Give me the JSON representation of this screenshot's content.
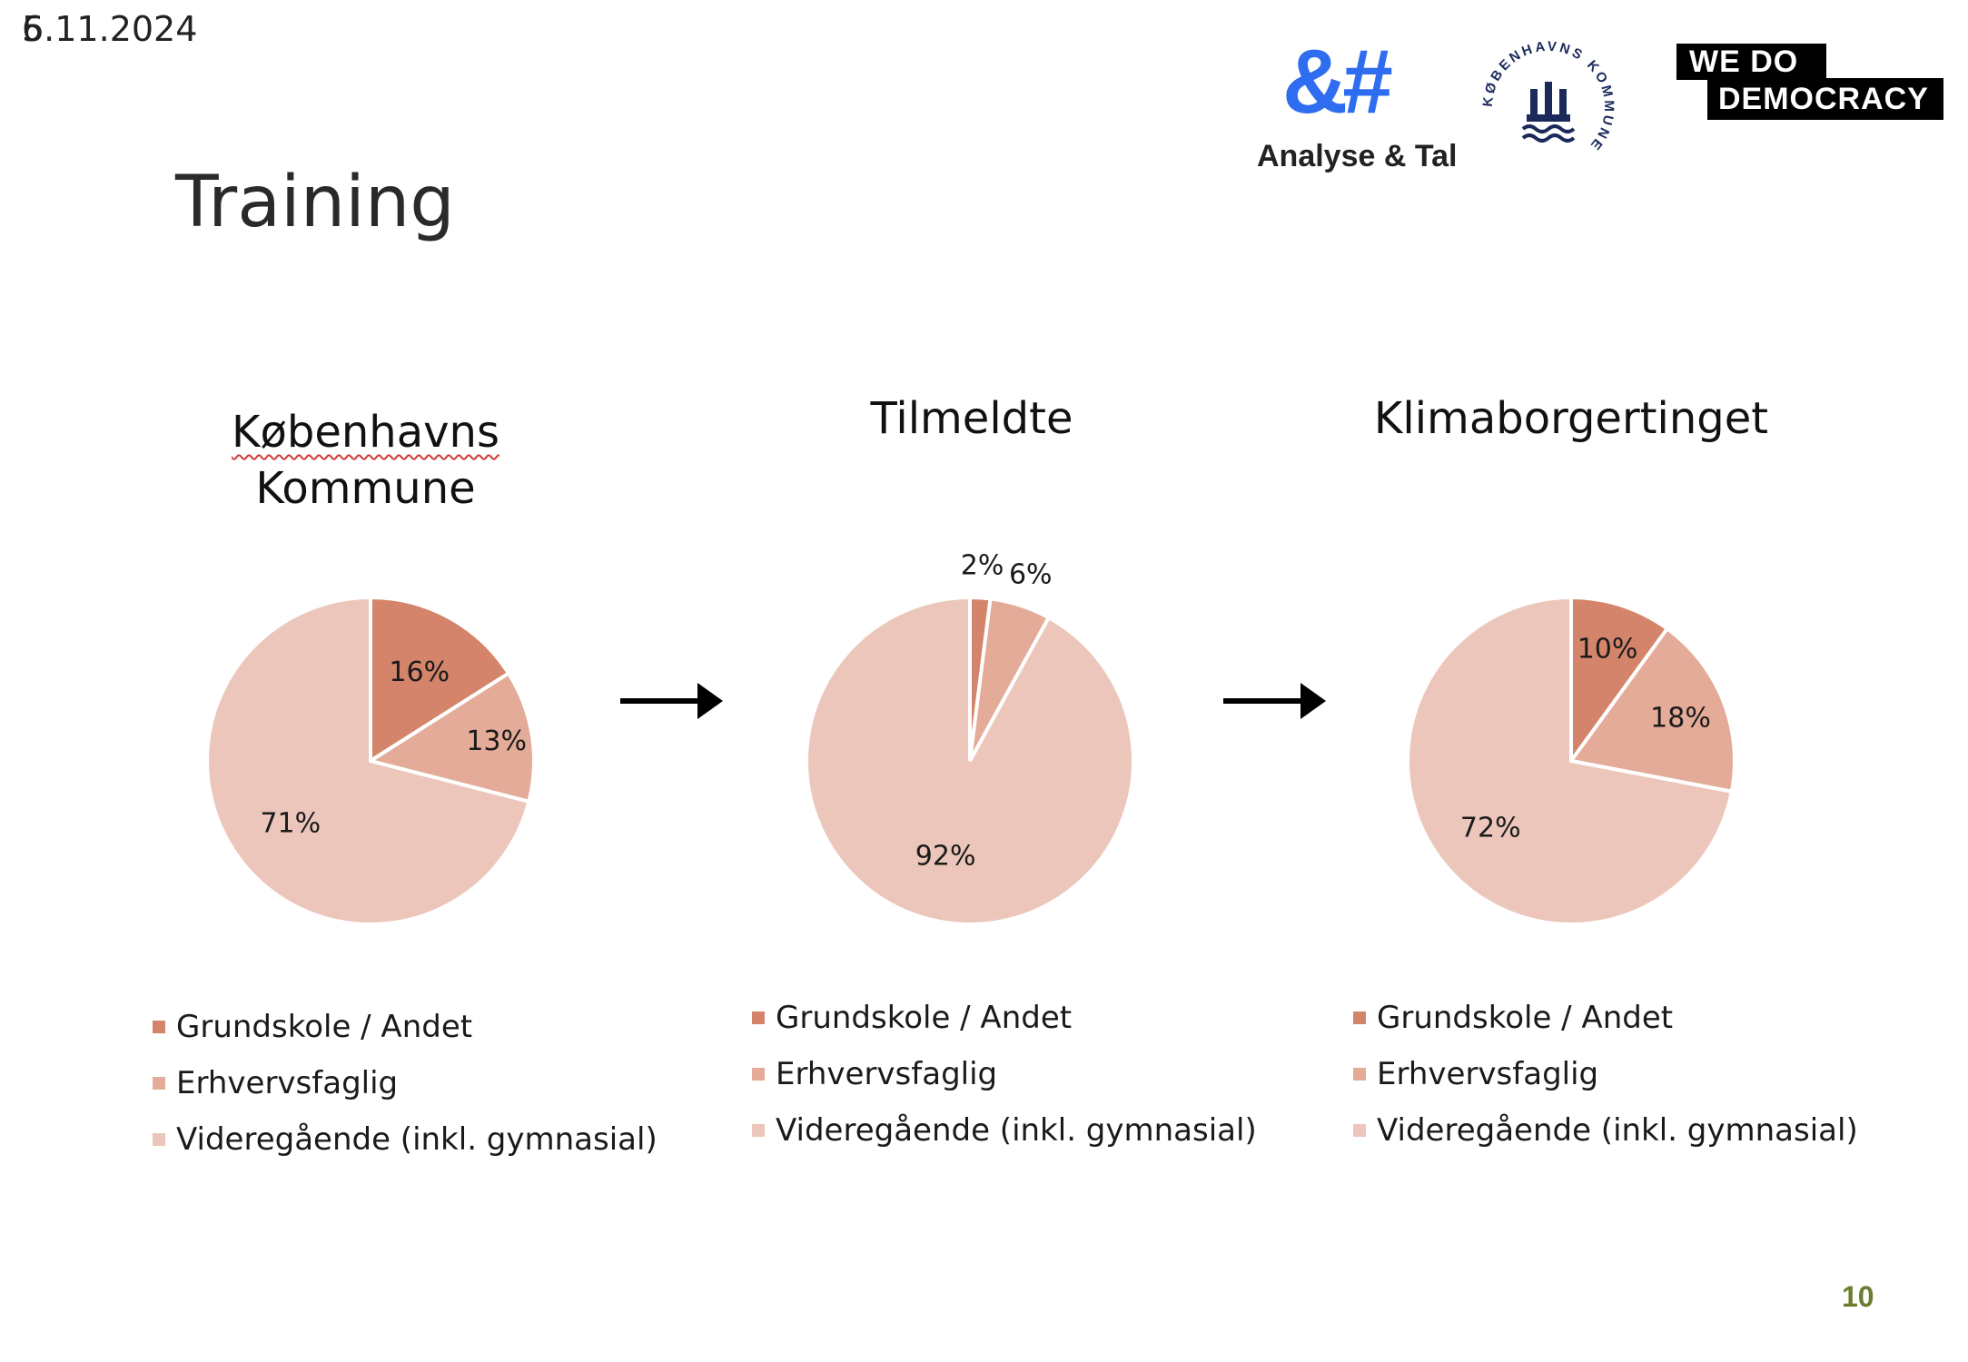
{
  "header": {
    "date": "5.11.2024",
    "date_overprint": "6",
    "title": "Training",
    "page_number": "10"
  },
  "logos": {
    "analyse_tal_mark": "&#",
    "analyse_tal_name": "Analyse & Tal",
    "kk_seal_text": "KØBENHAVNS KOMMUNE",
    "wdd_line1": "WE  DO",
    "wdd_line2": "DEMOCRACY"
  },
  "colors": {
    "grundskole": "#d4846a",
    "erhvervsfaglig": "#e3ab98",
    "videregaende": "#ecc6ba",
    "logo_blue": "#2f6df0",
    "page_number": "#6b7d2f"
  },
  "chart_data": [
    {
      "type": "pie",
      "title": "Københavns Kommune",
      "categories": [
        "Grundskole / Andet",
        "Erhvervsfaglig",
        "Videregående (inkl. gymnasial)"
      ],
      "values": [
        16,
        13,
        71
      ],
      "labels": [
        "16%",
        "13%",
        "71%"
      ],
      "legend": [
        "Grundskole / Andet",
        "Erhvervsfaglig",
        "Videregående (inkl. gymnasial)"
      ],
      "legend_position": "bottom"
    },
    {
      "type": "pie",
      "title": "Tilmeldte",
      "categories": [
        "Grundskole / Andet",
        "Erhvervsfaglig",
        "Videregående (inkl. gymnasial)"
      ],
      "values": [
        2,
        6,
        92
      ],
      "labels": [
        "2%",
        "6%",
        "92%"
      ],
      "legend": [
        "Grundskole / Andet",
        "Erhvervsfaglig",
        "Videregående (inkl. gymnasial)"
      ],
      "legend_position": "bottom"
    },
    {
      "type": "pie",
      "title": "Klimaborgertinget",
      "categories": [
        "Grundskole / Andet",
        "Erhvervsfaglig",
        "Videregående (inkl. gymnasial)"
      ],
      "values": [
        10,
        18,
        72
      ],
      "labels": [
        "10%",
        "18%",
        "72%"
      ],
      "legend": [
        "Grundskole / Andet",
        "Erhvervsfaglig",
        "Videregående (inkl. gymnasial)"
      ],
      "legend_position": "bottom"
    }
  ]
}
